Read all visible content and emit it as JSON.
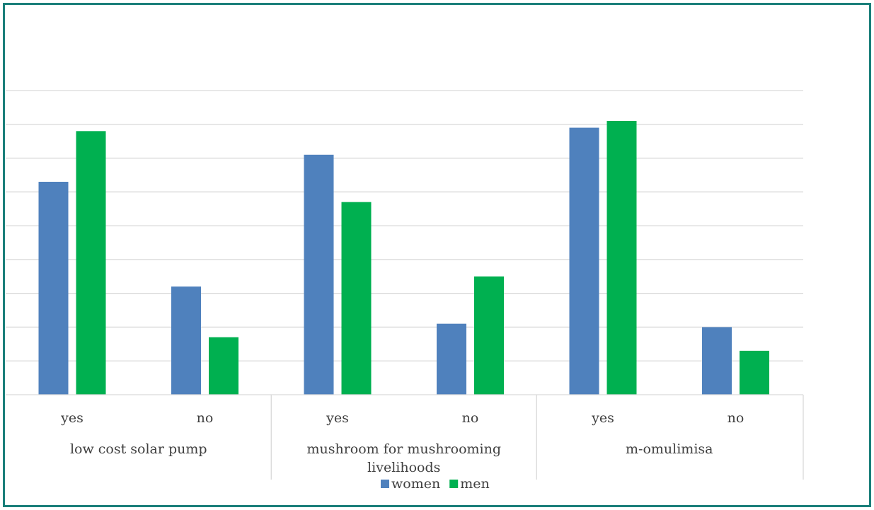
{
  "chart_data": {
    "type": "bar",
    "groups": [
      {
        "label": "low cost solar pump",
        "categories": [
          "yes",
          "no"
        ]
      },
      {
        "label": "mushroom for mushrooming livelihoods",
        "categories": [
          "yes",
          "no"
        ]
      },
      {
        "label": "m-omulimisa",
        "categories": [
          "yes",
          "no"
        ]
      }
    ],
    "categories": [
      "yes",
      "no",
      "yes",
      "no",
      "yes",
      "no"
    ],
    "series": [
      {
        "name": "women",
        "color": "#4f81bd",
        "values": [
          63,
          32,
          71,
          21,
          79,
          20
        ]
      },
      {
        "name": "men",
        "color": "#00b050",
        "values": [
          78,
          17,
          57,
          35,
          81,
          13
        ]
      }
    ],
    "ylim": [
      0,
      90
    ],
    "grid": true,
    "legend": "bottom",
    "xlabel": "",
    "ylabel": ""
  },
  "colors": {
    "border": "#1a7f7a",
    "grid": "#d9d9d9",
    "text": "#404040"
  }
}
